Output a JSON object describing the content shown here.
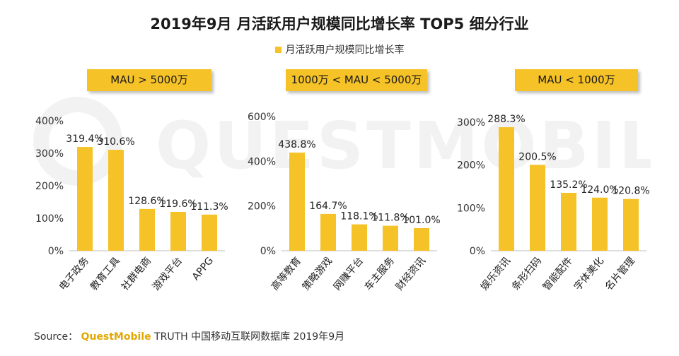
{
  "title": "2019年9月 月活跃用户规模同比增长率 TOP5 细分行业",
  "legend": "月活跃用户规模同比增长率",
  "watermark": "QUESTMOBILE",
  "colors": {
    "bar": "#F5C227",
    "axis": "#BFBFBF",
    "label_box": "#F5C227"
  },
  "source": {
    "prefix": "Source：",
    "brand": "QuestMobile",
    "rest": " TRUTH 中国移动互联网数据库 2019年9月"
  },
  "chart_data": [
    {
      "type": "bar",
      "panel_label": "MAU > 5000万",
      "categories": [
        "电子政务",
        "教育工具",
        "社群电商",
        "游戏平台",
        "APPG"
      ],
      "values": [
        319.4,
        310.6,
        128.6,
        119.6,
        111.3
      ],
      "value_labels": [
        "319.4%",
        "310.6%",
        "128.6%",
        "119.6%",
        "111.3%"
      ],
      "ylim": [
        0,
        400
      ],
      "yticks": [
        0,
        100,
        200,
        300,
        400
      ],
      "ytick_labels": [
        "0%",
        "100%",
        "200%",
        "300%",
        "400%"
      ]
    },
    {
      "type": "bar",
      "panel_label": "1000万 < MAU < 5000万",
      "categories": [
        "高等教育",
        "策略游戏",
        "网赚平台",
        "车主服务",
        "财经资讯"
      ],
      "values": [
        438.8,
        164.7,
        118.1,
        111.8,
        101.0
      ],
      "value_labels": [
        "438.8%",
        "164.7%",
        "118.1%",
        "111.8%",
        "101.0%"
      ],
      "ylim": [
        0,
        600
      ],
      "yticks": [
        0,
        200,
        400,
        600
      ],
      "ytick_labels": [
        "0%",
        "200%",
        "400%",
        "600%"
      ]
    },
    {
      "type": "bar",
      "panel_label": "MAU < 1000万",
      "categories": [
        "娱乐资讯",
        "条形扫码",
        "智能配件",
        "字体美化",
        "名片管理"
      ],
      "values": [
        288.3,
        200.5,
        135.2,
        124.0,
        120.8
      ],
      "value_labels": [
        "288.3%",
        "200.5%",
        "135.2%",
        "124.0%",
        "120.8%"
      ],
      "ylim": [
        0,
        300
      ],
      "yticks": [
        0,
        100,
        200,
        300
      ],
      "ytick_labels": [
        "0%",
        "100%",
        "200%",
        "300%"
      ]
    }
  ]
}
